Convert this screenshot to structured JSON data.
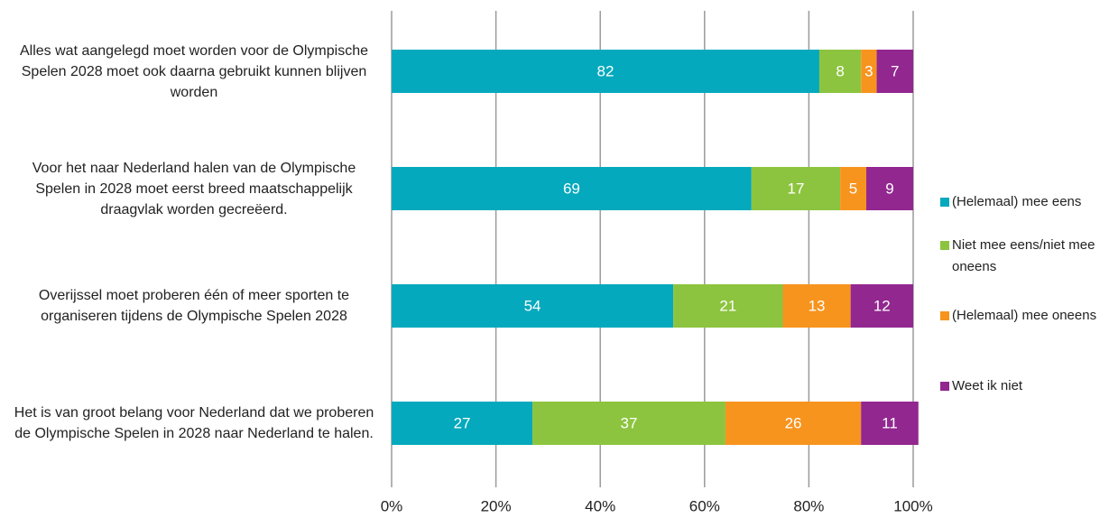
{
  "chart_data": {
    "type": "stacked-bar-horizontal",
    "categories": [
      "Alles wat aangelegd moet worden voor de Olympische Spelen 2028 moet ook daarna gebruikt kunnen blijven worden",
      "Voor het naar Nederland halen van de Olympische Spelen in 2028 moet eerst breed maatschappelijk draagvlak worden gecreëerd.",
      "Overijssel moet proberen één of meer sporten te organiseren tijdens de Olympische Spelen 2028",
      "Het is van groot belang voor Nederland dat we proberen de Olympische Spelen in 2028 naar Nederland te halen."
    ],
    "series": [
      {
        "name": "(Helemaal) mee eens",
        "color": "#05a9bd",
        "values": [
          82,
          69,
          54,
          27
        ]
      },
      {
        "name": "Niet mee eens/niet mee oneens",
        "color": "#8cc43f",
        "values": [
          8,
          17,
          21,
          37
        ]
      },
      {
        "name": "(Helemaal) mee oneens",
        "color": "#f7941e",
        "values": [
          3,
          5,
          13,
          26
        ]
      },
      {
        "name": "Weet ik niet",
        "color": "#92278f",
        "values": [
          7,
          9,
          12,
          11
        ]
      }
    ],
    "xlim": [
      0,
      100
    ],
    "xticks": [
      {
        "value": 0,
        "label": "0%"
      },
      {
        "value": 20,
        "label": "20%"
      },
      {
        "value": 40,
        "label": "40%"
      },
      {
        "value": 60,
        "label": "60%"
      },
      {
        "value": 80,
        "label": "80%"
      },
      {
        "value": 100,
        "label": "100%"
      }
    ],
    "grid": true,
    "legend": "right"
  }
}
